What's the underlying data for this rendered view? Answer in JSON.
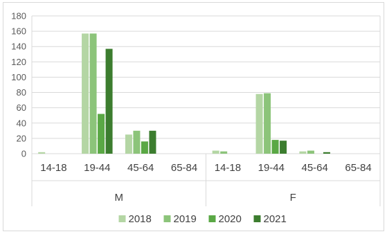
{
  "chart_data": {
    "type": "bar",
    "title": "",
    "xlabel": "",
    "ylabel": "",
    "ylim": [
      0,
      180
    ],
    "yticks": [
      "0",
      "20",
      "40",
      "60",
      "80",
      "100",
      "120",
      "140",
      "160",
      "180"
    ],
    "grid": true,
    "legend_position": "bottom",
    "groups": [
      "M",
      "F"
    ],
    "categories": [
      "14-18",
      "19-44",
      "45-64",
      "65-84",
      "14-18",
      "19-44",
      "45-64",
      "65-84"
    ],
    "series": [
      {
        "name": "2018",
        "color": "#b4d6a4",
        "values": [
          2,
          157,
          25,
          0,
          4,
          78,
          3,
          0
        ]
      },
      {
        "name": "2019",
        "color": "#8cc47a",
        "values": [
          0,
          157,
          30,
          0,
          3,
          79,
          4,
          0
        ]
      },
      {
        "name": "2020",
        "color": "#5aa845",
        "values": [
          0,
          52,
          16,
          0,
          0,
          18,
          0,
          0
        ]
      },
      {
        "name": "2021",
        "color": "#3c7d2f",
        "values": [
          0,
          137,
          30,
          0,
          0,
          17,
          2,
          0
        ]
      }
    ]
  }
}
